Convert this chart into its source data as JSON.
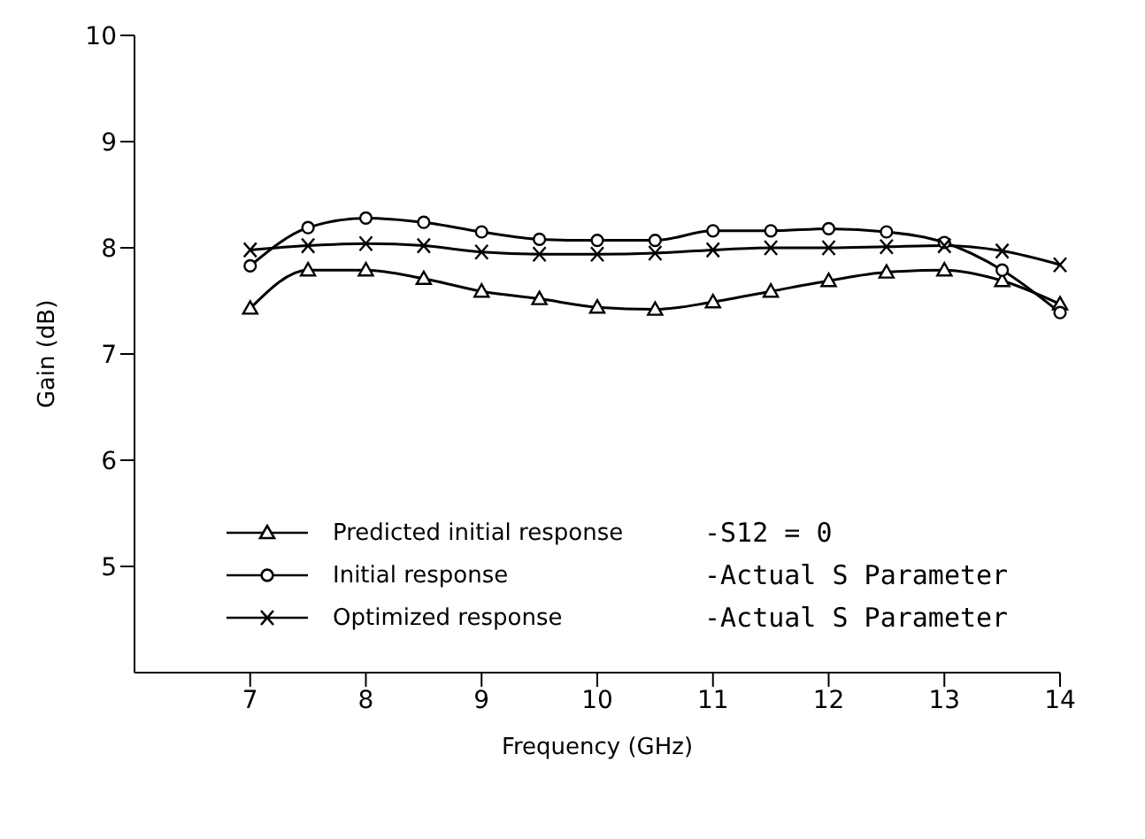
{
  "chart_data": {
    "type": "line",
    "xlabel": "Frequency (GHz)",
    "ylabel": "Gain (dB)",
    "x": [
      7,
      7.5,
      8,
      8.5,
      9,
      9.5,
      10,
      10.5,
      11,
      11.5,
      12,
      12.5,
      13,
      13.5,
      14
    ],
    "series": [
      {
        "name": "Predicted initial response",
        "color": "#000000",
        "marker": "triangle",
        "values": [
          7.43,
          7.79,
          7.79,
          7.71,
          7.59,
          7.52,
          7.44,
          7.42,
          7.49,
          7.59,
          7.69,
          7.77,
          7.79,
          7.69,
          7.47
        ]
      },
      {
        "name": "Initial response",
        "color": "#000000",
        "marker": "circle",
        "values": [
          7.83,
          8.19,
          8.28,
          8.24,
          8.15,
          8.08,
          8.07,
          8.07,
          8.16,
          8.16,
          8.18,
          8.15,
          8.05,
          7.79,
          7.39
        ]
      },
      {
        "name": "Optimized response",
        "color": "#000000",
        "marker": "cross",
        "values": [
          7.98,
          8.02,
          8.04,
          8.02,
          7.96,
          7.94,
          7.94,
          7.95,
          7.98,
          8.0,
          8.0,
          8.01,
          8.02,
          7.97,
          7.84
        ]
      }
    ],
    "annotations": [
      "-S12 = 0",
      "-Actual S Parameter",
      "-Actual S Parameter"
    ],
    "xlim": [
      6,
      14
    ],
    "xticks": [
      7,
      8,
      9,
      10,
      11,
      12,
      13,
      14
    ],
    "ylim": [
      4,
      10
    ],
    "yticks": [
      5,
      6,
      7,
      8,
      9,
      10
    ],
    "grid": false,
    "legend": "bottom left",
    "line_style": "solid"
  }
}
